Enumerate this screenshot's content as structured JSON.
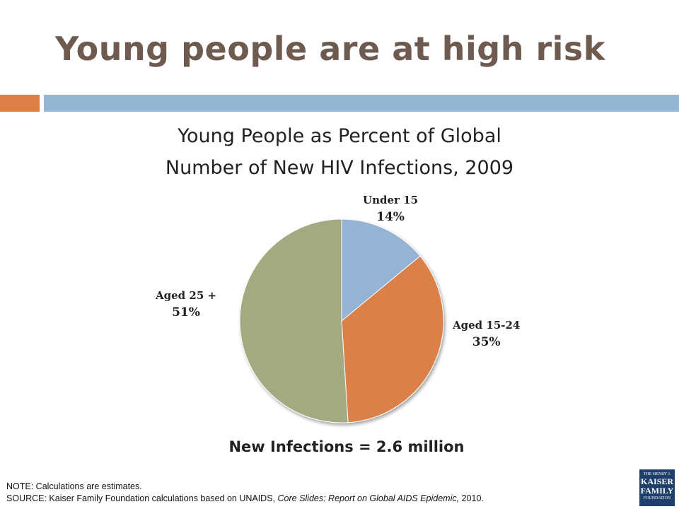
{
  "slide": {
    "title": "Young people are at high risk",
    "colors": {
      "title": "#6e5a4f",
      "accent_orange": "#dd8047",
      "accent_blue": "#94b6d2"
    }
  },
  "chart_data": {
    "type": "pie",
    "title_line1": "Young People as Percent of Global",
    "title_line2": "Number of New HIV Infections, 2009",
    "slices": [
      {
        "label": "Under 15",
        "value": 14,
        "display": "14%",
        "color": "#95b3d3"
      },
      {
        "label": "Aged 15-24",
        "value": 35,
        "display": "35%",
        "color": "#dc8048"
      },
      {
        "label": "Aged 25 +",
        "value": 51,
        "display": "51%",
        "color": "#a3a980"
      }
    ],
    "start_angle": "12 o'clock",
    "direction": "clockwise",
    "footer": "New Infections = 2.6 million"
  },
  "notes": {
    "note": "NOTE: Calculations are estimates.",
    "source_prefix": "SOURCE: Kaiser Family Foundation calculations based on UNAIDS, ",
    "source_italic": "Core Slides: Report on Global AIDS Epidemic,",
    "source_suffix": " 2010."
  },
  "logo": {
    "line1": "THE HENRY J.",
    "line2": "KAISER",
    "line3": "FAMILY",
    "line4": "FOUNDATION"
  }
}
